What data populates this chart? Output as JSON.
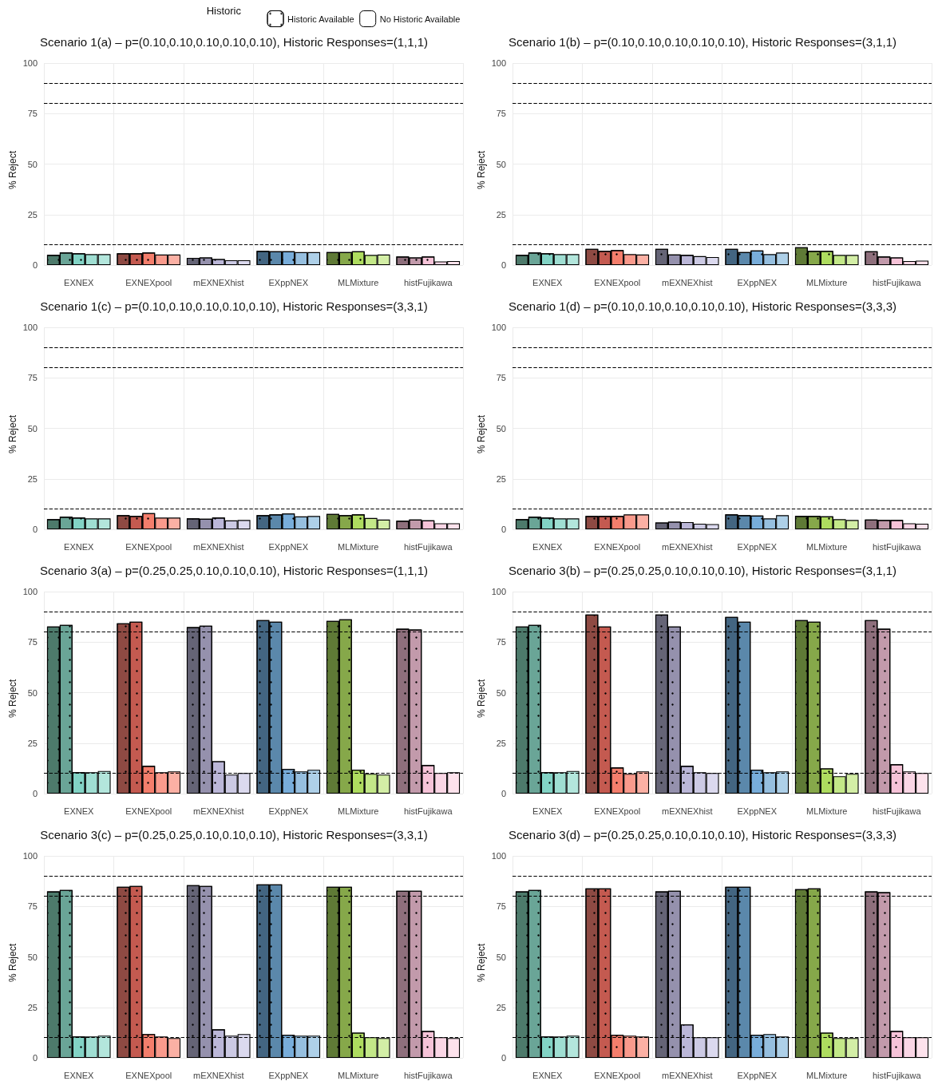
{
  "chart_data": [
    {
      "type": "bar",
      "title": "Scenario 1(a) – p=(0.10,0.10,0.10,0.10,0.10), Historic Responses=(1,1,1)",
      "ylabel": "% Reject",
      "legend_title": "Historic",
      "legend": "top",
      "grid": true,
      "categories": [
        "EXNEX",
        "EXNEXpool",
        "mEXNEXhist",
        "EXppNEX",
        "MLMixture",
        "histFujikawa"
      ],
      "ylim": [
        0,
        100
      ],
      "yticks": [
        0,
        25,
        50,
        75,
        100
      ],
      "ref_lines": [
        {
          "axis": "y",
          "value": 10,
          "line_style": "dashed",
          "color": "#000000"
        },
        {
          "axis": "y",
          "value": 80,
          "line_style": "dashed",
          "color": "#000000"
        },
        {
          "axis": "y",
          "value": 90,
          "line_style": "dashed",
          "color": "#000000"
        }
      ],
      "series": [
        {
          "name": "Historic Available",
          "colors": [
            "#4d7a6b",
            "#8e4a43",
            "#656476",
            "#436581",
            "#5f7a36",
            "#8e6f7c"
          ],
          "values": [
            5.0,
            5.8,
            3.6,
            7.0,
            6.4,
            4.2
          ]
        },
        {
          "colors": [
            "#6aa597",
            "#c45a50",
            "#9591ad",
            "#5b88ab",
            "#86a84a",
            "#c29aab"
          ],
          "values": [
            6.2,
            5.8,
            3.8,
            6.8,
            6.4,
            3.8
          ]
        },
        {
          "colors": [
            "#82d3c5",
            "#f47e6c",
            "#bbb7d8",
            "#78adda",
            "#aedc5f",
            "#f6c3d8"
          ],
          "values": [
            5.8,
            6.2,
            3.0,
            6.8,
            6.8,
            4.2
          ]
        },
        {
          "name": "No Historic Available",
          "colors": [
            "#9fded2",
            "#f99a8c",
            "#cccae4",
            "#96bfdf",
            "#c3e888",
            "#fad6e5"
          ],
          "values": [
            5.4,
            5.2,
            2.4,
            6.4,
            5.0,
            1.8
          ]
        },
        {
          "colors": [
            "#b3e6dc",
            "#fbb0a4",
            "#dbd9ee",
            "#aed0e8",
            "#d3eea6",
            "#fde2ec"
          ],
          "values": [
            5.4,
            5.2,
            2.4,
            6.4,
            5.2,
            2.0
          ]
        }
      ]
    },
    {
      "type": "bar",
      "title": "Scenario 1(b) – p=(0.10,0.10,0.10,0.10,0.10), Historic Responses=(3,1,1)",
      "ylabel": "% Reject",
      "grid": true,
      "categories": [
        "EXNEX",
        "EXNEXpool",
        "mEXNEXhist",
        "EXppNEX",
        "MLMixture",
        "histFujikawa"
      ],
      "ylim": [
        0,
        100
      ],
      "yticks": [
        0,
        25,
        50,
        75,
        100
      ],
      "ref_lines": [
        {
          "axis": "y",
          "value": 10,
          "line_style": "dashed",
          "color": "#000000"
        },
        {
          "axis": "y",
          "value": 80,
          "line_style": "dashed",
          "color": "#000000"
        },
        {
          "axis": "y",
          "value": 90,
          "line_style": "dashed",
          "color": "#000000"
        }
      ],
      "series": [
        {
          "colors": [
            "#4d7a6b",
            "#8e4a43",
            "#656476",
            "#436581",
            "#5f7a36",
            "#8e6f7c"
          ],
          "values": [
            5.0,
            8.0,
            8.0,
            8.0,
            8.8,
            6.8
          ]
        },
        {
          "colors": [
            "#6aa597",
            "#c45a50",
            "#9591ad",
            "#5b88ab",
            "#86a84a",
            "#c29aab"
          ],
          "values": [
            6.2,
            7.0,
            5.2,
            6.4,
            7.0,
            4.2
          ]
        },
        {
          "colors": [
            "#82d3c5",
            "#f47e6c",
            "#bbb7d8",
            "#78adda",
            "#aedc5f",
            "#f6c3d8"
          ],
          "values": [
            5.8,
            7.4,
            5.0,
            7.2,
            7.0,
            3.8
          ]
        },
        {
          "colors": [
            "#9fded2",
            "#f99a8c",
            "#cccae4",
            "#96bfdf",
            "#c3e888",
            "#fad6e5"
          ],
          "values": [
            5.4,
            5.4,
            4.4,
            5.4,
            5.0,
            2.0
          ]
        },
        {
          "colors": [
            "#b3e6dc",
            "#fbb0a4",
            "#dbd9ee",
            "#aed0e8",
            "#d3eea6",
            "#fde2ec"
          ],
          "values": [
            5.4,
            5.2,
            4.0,
            6.2,
            5.0,
            2.2
          ]
        }
      ]
    },
    {
      "type": "bar",
      "title": "Scenario 1(c) – p=(0.10,0.10,0.10,0.10,0.10), Historic Responses=(3,3,1)",
      "ylabel": "% Reject",
      "grid": true,
      "categories": [
        "EXNEX",
        "EXNEXpool",
        "mEXNEXhist",
        "EXppNEX",
        "MLMixture",
        "histFujikawa"
      ],
      "ylim": [
        0,
        100
      ],
      "yticks": [
        0,
        25,
        50,
        75,
        100
      ],
      "ref_lines": [
        {
          "axis": "y",
          "value": 10,
          "line_style": "dashed",
          "color": "#000000"
        },
        {
          "axis": "y",
          "value": 80,
          "line_style": "dashed",
          "color": "#000000"
        },
        {
          "axis": "y",
          "value": 90,
          "line_style": "dashed",
          "color": "#000000"
        }
      ],
      "series": [
        {
          "colors": [
            "#4d7a6b",
            "#8e4a43",
            "#656476",
            "#436581",
            "#5f7a36",
            "#8e6f7c"
          ],
          "values": [
            5.0,
            7.0,
            5.4,
            7.0,
            7.6,
            4.2
          ]
        },
        {
          "colors": [
            "#6aa597",
            "#c45a50",
            "#9591ad",
            "#5b88ab",
            "#86a84a",
            "#c29aab"
          ],
          "values": [
            6.2,
            6.6,
            5.2,
            7.4,
            7.0,
            4.8
          ]
        },
        {
          "colors": [
            "#82d3c5",
            "#f47e6c",
            "#bbb7d8",
            "#78adda",
            "#aedc5f",
            "#f6c3d8"
          ],
          "values": [
            5.8,
            8.0,
            5.8,
            7.8,
            7.4,
            4.4
          ]
        },
        {
          "colors": [
            "#9fded2",
            "#f99a8c",
            "#cccae4",
            "#96bfdf",
            "#c3e888",
            "#fad6e5"
          ],
          "values": [
            5.4,
            5.8,
            4.4,
            6.4,
            5.6,
            3.0
          ]
        },
        {
          "colors": [
            "#b3e6dc",
            "#fbb0a4",
            "#dbd9ee",
            "#aed0e8",
            "#d3eea6",
            "#fde2ec"
          ],
          "values": [
            5.4,
            5.8,
            4.6,
            6.6,
            4.8,
            3.0
          ]
        }
      ]
    },
    {
      "type": "bar",
      "title": "Scenario 1(d) – p=(0.10,0.10,0.10,0.10,0.10), Historic Responses=(3,3,3)",
      "ylabel": "% Reject",
      "grid": true,
      "categories": [
        "EXNEX",
        "EXNEXpool",
        "mEXNEXhist",
        "EXppNEX",
        "MLMixture",
        "histFujikawa"
      ],
      "ylim": [
        0,
        100
      ],
      "yticks": [
        0,
        25,
        50,
        75,
        100
      ],
      "ref_lines": [
        {
          "axis": "y",
          "value": 10,
          "line_style": "dashed",
          "color": "#000000"
        },
        {
          "axis": "y",
          "value": 80,
          "line_style": "dashed",
          "color": "#000000"
        },
        {
          "axis": "y",
          "value": 90,
          "line_style": "dashed",
          "color": "#000000"
        }
      ],
      "series": [
        {
          "colors": [
            "#4d7a6b",
            "#8e4a43",
            "#656476",
            "#436581",
            "#5f7a36",
            "#8e6f7c"
          ],
          "values": [
            5.0,
            6.6,
            3.4,
            7.4,
            6.6,
            4.8
          ]
        },
        {
          "colors": [
            "#6aa597",
            "#c45a50",
            "#9591ad",
            "#5b88ab",
            "#86a84a",
            "#c29aab"
          ],
          "values": [
            6.2,
            6.6,
            3.8,
            7.0,
            6.6,
            4.6
          ]
        },
        {
          "colors": [
            "#82d3c5",
            "#f47e6c",
            "#bbb7d8",
            "#78adda",
            "#aedc5f",
            "#f6c3d8"
          ],
          "values": [
            5.8,
            6.6,
            3.6,
            6.8,
            6.4,
            4.6
          ]
        },
        {
          "colors": [
            "#9fded2",
            "#f99a8c",
            "#cccae4",
            "#96bfdf",
            "#c3e888",
            "#fad6e5"
          ],
          "values": [
            5.4,
            7.4,
            2.8,
            5.4,
            5.0,
            3.0
          ]
        },
        {
          "colors": [
            "#b3e6dc",
            "#fbb0a4",
            "#dbd9ee",
            "#aed0e8",
            "#d3eea6",
            "#fde2ec"
          ],
          "values": [
            5.4,
            7.4,
            2.6,
            7.0,
            4.6,
            2.8
          ]
        }
      ]
    },
    {
      "type": "bar",
      "title": "Scenario 3(a) – p=(0.25,0.25,0.10,0.10,0.10), Historic Responses=(1,1,1)",
      "ylabel": "% Reject",
      "grid": true,
      "categories": [
        "EXNEX",
        "EXNEXpool",
        "mEXNEXhist",
        "EXppNEX",
        "MLMixture",
        "histFujikawa"
      ],
      "ylim": [
        0,
        100
      ],
      "yticks": [
        0,
        25,
        50,
        75,
        100
      ],
      "ref_lines": [
        {
          "axis": "y",
          "value": 10,
          "line_style": "dashed",
          "color": "#000000"
        },
        {
          "axis": "y",
          "value": 80,
          "line_style": "dashed",
          "color": "#000000"
        },
        {
          "axis": "y",
          "value": 90,
          "line_style": "dashed",
          "color": "#000000"
        }
      ],
      "series": [
        {
          "colors": [
            "#4d7a6b",
            "#8e4a43",
            "#656476",
            "#436581",
            "#5f7a36",
            "#8e6f7c"
          ],
          "values": [
            82.7,
            84.3,
            82.4,
            85.9,
            85.5,
            81.6
          ]
        },
        {
          "colors": [
            "#6aa597",
            "#c45a50",
            "#9591ad",
            "#5b88ab",
            "#86a84a",
            "#c29aab"
          ],
          "values": [
            83.5,
            85.1,
            83.1,
            85.1,
            86.3,
            81.2
          ]
        },
        {
          "colors": [
            "#82d3c5",
            "#f47e6c",
            "#bbb7d8",
            "#78adda",
            "#aedc5f",
            "#f6c3d8"
          ],
          "values": [
            10.6,
            13.7,
            16.0,
            12.2,
            11.8,
            14.1
          ]
        },
        {
          "colors": [
            "#9fded2",
            "#f99a8c",
            "#cccae4",
            "#96bfdf",
            "#c3e888",
            "#fad6e5"
          ],
          "values": [
            10.6,
            10.6,
            9.4,
            11.0,
            9.8,
            10.2
          ]
        },
        {
          "colors": [
            "#b3e6dc",
            "#fbb0a4",
            "#dbd9ee",
            "#aed0e8",
            "#d3eea6",
            "#fde2ec"
          ],
          "values": [
            11.2,
            11.0,
            10.2,
            11.8,
            9.4,
            10.6
          ]
        }
      ]
    },
    {
      "type": "bar",
      "title": "Scenario 3(b) – p=(0.25,0.25,0.10,0.10,0.10), Historic Responses=(3,1,1)",
      "ylabel": "% Reject",
      "grid": true,
      "categories": [
        "EXNEX",
        "EXNEXpool",
        "mEXNEXhist",
        "EXppNEX",
        "MLMixture",
        "histFujikawa"
      ],
      "ylim": [
        0,
        100
      ],
      "yticks": [
        0,
        25,
        50,
        75,
        100
      ],
      "ref_lines": [
        {
          "axis": "y",
          "value": 10,
          "line_style": "dashed",
          "color": "#000000"
        },
        {
          "axis": "y",
          "value": 80,
          "line_style": "dashed",
          "color": "#000000"
        },
        {
          "axis": "y",
          "value": 90,
          "line_style": "dashed",
          "color": "#000000"
        }
      ],
      "series": [
        {
          "colors": [
            "#4d7a6b",
            "#8e4a43",
            "#656476",
            "#436581",
            "#5f7a36",
            "#8e6f7c"
          ],
          "values": [
            82.7,
            88.6,
            88.6,
            87.5,
            85.9,
            85.9
          ]
        },
        {
          "colors": [
            "#6aa597",
            "#c45a50",
            "#9591ad",
            "#5b88ab",
            "#86a84a",
            "#c29aab"
          ],
          "values": [
            83.5,
            82.7,
            82.7,
            85.1,
            85.1,
            81.6
          ]
        },
        {
          "colors": [
            "#82d3c5",
            "#f47e6c",
            "#bbb7d8",
            "#78adda",
            "#aedc5f",
            "#f6c3d8"
          ],
          "values": [
            10.6,
            12.9,
            13.7,
            11.8,
            12.5,
            14.5
          ]
        },
        {
          "colors": [
            "#9fded2",
            "#f99a8c",
            "#cccae4",
            "#96bfdf",
            "#c3e888",
            "#fad6e5"
          ],
          "values": [
            10.6,
            9.8,
            10.6,
            10.6,
            8.6,
            11.0
          ]
        },
        {
          "colors": [
            "#b3e6dc",
            "#fbb0a4",
            "#dbd9ee",
            "#aed0e8",
            "#d3eea6",
            "#fde2ec"
          ],
          "values": [
            11.2,
            11.0,
            10.2,
            11.0,
            9.8,
            10.2
          ]
        }
      ]
    },
    {
      "type": "bar",
      "title": "Scenario 3(c) – p=(0.25,0.25,0.10,0.10,0.10), Historic Responses=(3,3,1)",
      "ylabel": "% Reject",
      "grid": true,
      "categories": [
        "EXNEX",
        "EXNEXpool",
        "mEXNEXhist",
        "EXppNEX",
        "MLMixture",
        "histFujikawa"
      ],
      "ylim": [
        0,
        100
      ],
      "yticks": [
        0,
        25,
        50,
        75,
        100
      ],
      "ref_lines": [
        {
          "axis": "y",
          "value": 10,
          "line_style": "dashed",
          "color": "#000000"
        },
        {
          "axis": "y",
          "value": 80,
          "line_style": "dashed",
          "color": "#000000"
        },
        {
          "axis": "y",
          "value": 90,
          "line_style": "dashed",
          "color": "#000000"
        }
      ],
      "series": [
        {
          "colors": [
            "#4d7a6b",
            "#8e4a43",
            "#656476",
            "#436581",
            "#5f7a36",
            "#8e6f7c"
          ],
          "values": [
            82.4,
            84.7,
            85.5,
            85.9,
            84.7,
            82.7
          ]
        },
        {
          "colors": [
            "#6aa597",
            "#c45a50",
            "#9591ad",
            "#5b88ab",
            "#86a84a",
            "#c29aab"
          ],
          "values": [
            83.1,
            85.1,
            85.1,
            85.9,
            84.7,
            82.7
          ]
        },
        {
          "colors": [
            "#82d3c5",
            "#f47e6c",
            "#bbb7d8",
            "#78adda",
            "#aedc5f",
            "#f6c3d8"
          ],
          "values": [
            10.6,
            11.8,
            14.1,
            11.4,
            12.5,
            13.3
          ]
        },
        {
          "colors": [
            "#9fded2",
            "#f99a8c",
            "#cccae4",
            "#96bfdf",
            "#c3e888",
            "#fad6e5"
          ],
          "values": [
            10.6,
            10.6,
            11.0,
            11.0,
            10.2,
            10.2
          ]
        },
        {
          "colors": [
            "#b3e6dc",
            "#fbb0a4",
            "#dbd9ee",
            "#aed0e8",
            "#d3eea6",
            "#fde2ec"
          ],
          "values": [
            11.0,
            9.8,
            11.8,
            11.0,
            9.8,
            9.8
          ]
        }
      ]
    },
    {
      "type": "bar",
      "title": "Scenario 3(d) – p=(0.25,0.25,0.10,0.10,0.10), Historic Responses=(3,3,3)",
      "ylabel": "% Reject",
      "grid": true,
      "categories": [
        "EXNEX",
        "EXNEXpool",
        "mEXNEXhist",
        "EXppNEX",
        "MLMixture",
        "histFujikawa"
      ],
      "ylim": [
        0,
        100
      ],
      "yticks": [
        0,
        25,
        50,
        75,
        100
      ],
      "ref_lines": [
        {
          "axis": "y",
          "value": 10,
          "line_style": "dashed",
          "color": "#000000"
        },
        {
          "axis": "y",
          "value": 80,
          "line_style": "dashed",
          "color": "#000000"
        },
        {
          "axis": "y",
          "value": 90,
          "line_style": "dashed",
          "color": "#000000"
        }
      ],
      "series": [
        {
          "colors": [
            "#4d7a6b",
            "#8e4a43",
            "#656476",
            "#436581",
            "#5f7a36",
            "#8e6f7c"
          ],
          "values": [
            82.4,
            83.9,
            82.4,
            84.7,
            83.5,
            82.4
          ]
        },
        {
          "colors": [
            "#6aa597",
            "#c45a50",
            "#9591ad",
            "#5b88ab",
            "#86a84a",
            "#c29aab"
          ],
          "values": [
            83.1,
            83.9,
            82.7,
            84.7,
            83.9,
            82.0
          ]
        },
        {
          "colors": [
            "#82d3c5",
            "#f47e6c",
            "#bbb7d8",
            "#78adda",
            "#aedc5f",
            "#f6c3d8"
          ],
          "values": [
            10.6,
            11.4,
            16.5,
            11.4,
            12.5,
            13.3
          ]
        },
        {
          "colors": [
            "#9fded2",
            "#f99a8c",
            "#cccae4",
            "#96bfdf",
            "#c3e888",
            "#fad6e5"
          ],
          "values": [
            10.6,
            11.0,
            10.2,
            11.8,
            9.8,
            10.2
          ]
        },
        {
          "colors": [
            "#b3e6dc",
            "#fbb0a4",
            "#dbd9ee",
            "#aed0e8",
            "#d3eea6",
            "#fde2ec"
          ],
          "values": [
            11.0,
            10.6,
            10.2,
            10.6,
            9.8,
            10.2
          ]
        }
      ]
    }
  ]
}
